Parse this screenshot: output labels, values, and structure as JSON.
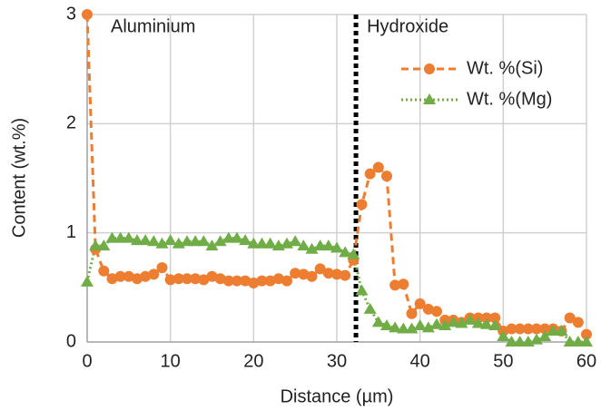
{
  "chart_data": {
    "type": "line",
    "x_label": "Distance (µm)",
    "y_label": "Content (wt.%)",
    "region_labels": [
      "Aluminium",
      "Hydroxide"
    ],
    "divider_x": 32.3,
    "x": [
      0,
      1,
      2,
      3,
      4,
      5,
      6,
      7,
      8,
      9,
      10,
      11,
      12,
      13,
      14,
      15,
      16,
      17,
      18,
      19,
      20,
      21,
      22,
      23,
      24,
      25,
      26,
      27,
      28,
      29,
      30,
      31,
      32,
      33,
      34,
      35,
      36,
      37,
      38,
      39,
      40,
      41,
      42,
      43,
      44,
      45,
      46,
      47,
      48,
      49,
      50,
      51,
      52,
      53,
      54,
      55,
      56,
      57,
      58,
      59,
      60
    ],
    "series": [
      {
        "name": "Wt. %(Si)",
        "color": "#ed7d31",
        "marker": "circle",
        "dash": "dashed",
        "values": [
          3.0,
          0.85,
          0.65,
          0.58,
          0.6,
          0.6,
          0.58,
          0.6,
          0.62,
          0.68,
          0.57,
          0.58,
          0.58,
          0.58,
          0.57,
          0.6,
          0.58,
          0.56,
          0.56,
          0.56,
          0.54,
          0.56,
          0.56,
          0.58,
          0.56,
          0.63,
          0.62,
          0.6,
          0.67,
          0.63,
          0.62,
          0.61,
          0.75,
          1.26,
          1.54,
          1.6,
          1.52,
          0.52,
          0.53,
          0.26,
          0.35,
          0.3,
          0.28,
          0.2,
          0.2,
          0.18,
          0.22,
          0.22,
          0.22,
          0.22,
          0.1,
          0.12,
          0.12,
          0.12,
          0.12,
          0.12,
          0.12,
          0.1,
          0.22,
          0.18,
          0.07
        ]
      },
      {
        "name": "Wt. %(Mg)",
        "color": "#70ad47",
        "marker": "triangle",
        "dash": "dotted",
        "values": [
          0.55,
          0.88,
          0.88,
          0.95,
          0.95,
          0.95,
          0.93,
          0.93,
          0.92,
          0.9,
          0.93,
          0.9,
          0.92,
          0.92,
          0.92,
          0.88,
          0.92,
          0.95,
          0.95,
          0.93,
          0.9,
          0.9,
          0.9,
          0.88,
          0.9,
          0.92,
          0.88,
          0.85,
          0.88,
          0.88,
          0.86,
          0.82,
          0.8,
          0.47,
          0.3,
          0.18,
          0.15,
          0.13,
          0.12,
          0.12,
          0.15,
          0.13,
          0.16,
          0.15,
          0.18,
          0.17,
          0.2,
          0.17,
          0.16,
          0.15,
          0.05,
          0.0,
          0.0,
          0.0,
          0.02,
          0.05,
          0.1,
          0.1,
          0.0,
          0.0,
          0.0
        ]
      }
    ],
    "xlim": [
      0,
      60
    ],
    "xticks": [
      0,
      10,
      20,
      30,
      40,
      50,
      60
    ],
    "ylim": [
      0,
      3
    ],
    "yticks": [
      0,
      1,
      2,
      3
    ],
    "grid": true,
    "legend": "top-right"
  }
}
